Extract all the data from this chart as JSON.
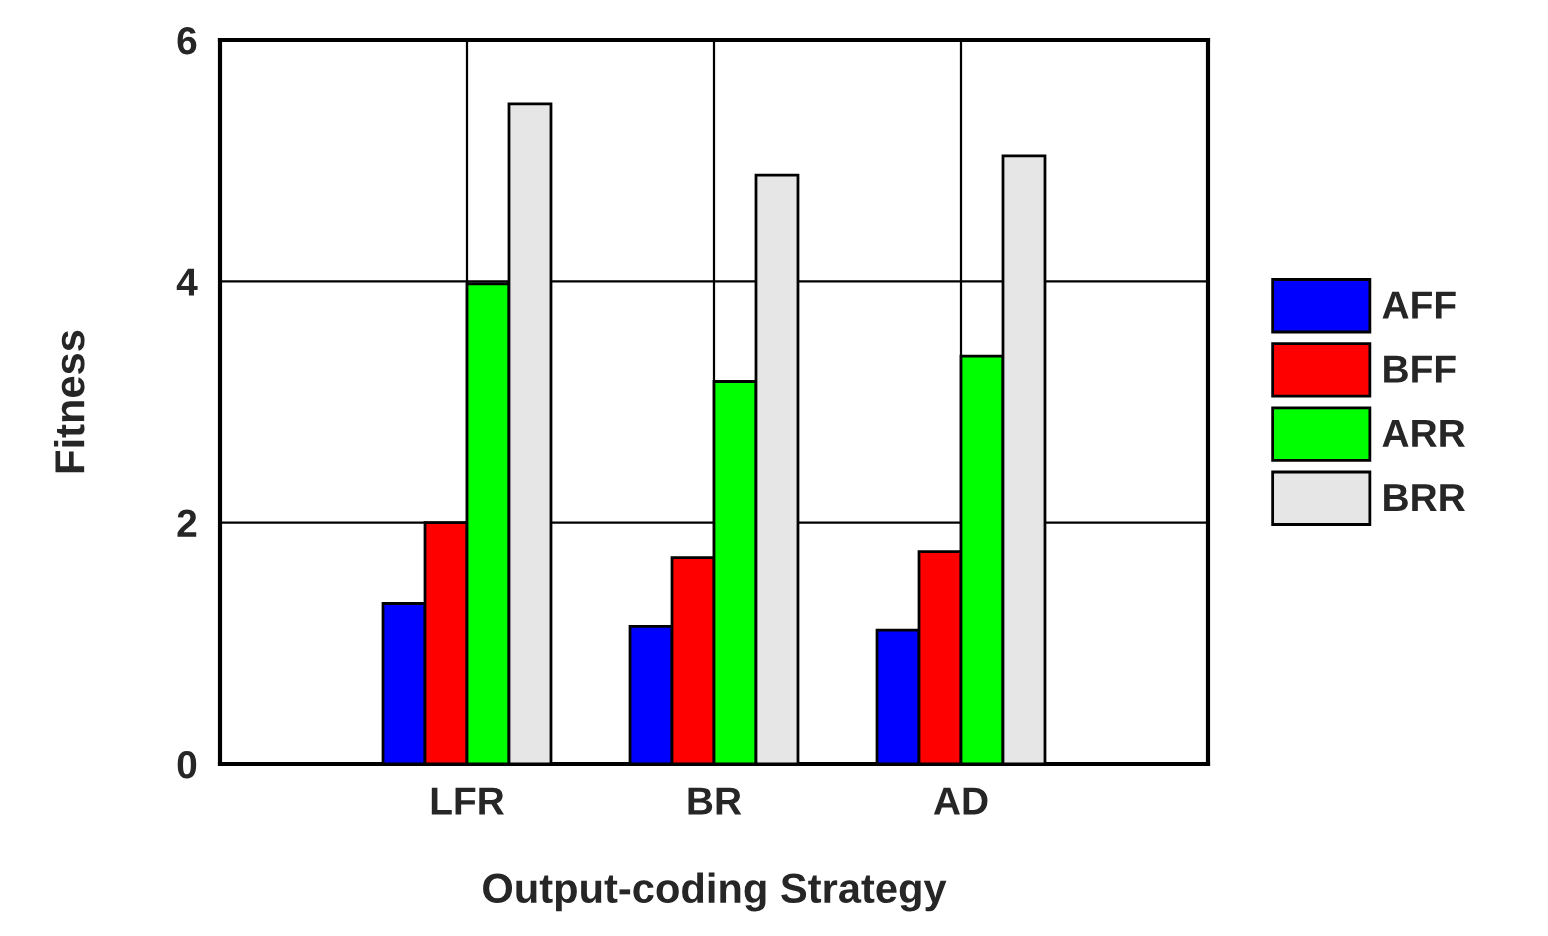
{
  "chart_data": {
    "type": "bar",
    "xlabel": "Output-coding Strategy",
    "ylabel": "Fitness",
    "categories": [
      "LFR",
      "BR",
      "AD"
    ],
    "series": [
      {
        "name": "AFF",
        "color": "#0000ff",
        "values": [
          1.33,
          1.14,
          1.11
        ]
      },
      {
        "name": "BFF",
        "color": "#ff0000",
        "values": [
          2.0,
          1.71,
          1.76
        ]
      },
      {
        "name": "ARR",
        "color": "#00ff00",
        "values": [
          3.98,
          3.17,
          3.38
        ]
      },
      {
        "name": "BRR",
        "color": "#e6e6e6",
        "values": [
          5.47,
          4.88,
          5.04
        ]
      }
    ],
    "ylim": [
      0,
      6
    ],
    "yticks": [
      0,
      2,
      4,
      6
    ],
    "grid": true,
    "legend": "right"
  }
}
